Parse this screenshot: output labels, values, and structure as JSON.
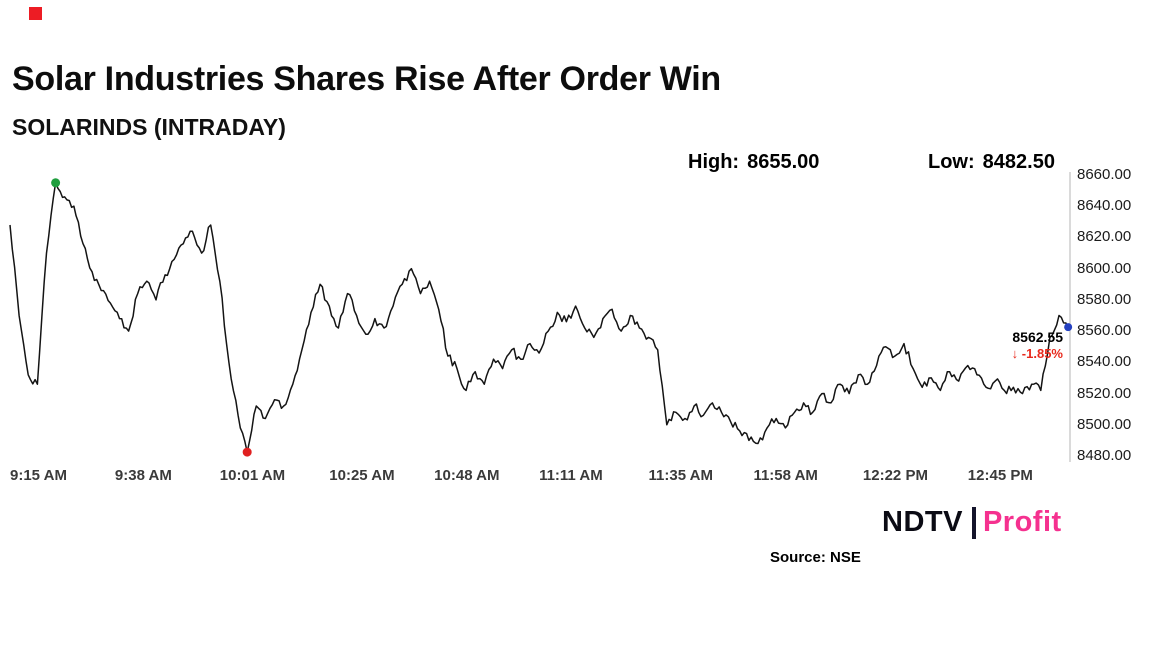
{
  "brand": {
    "red_mark_color": "#ed1c24",
    "logo_ndtv": "NDTV",
    "logo_separator_color": "#14142b",
    "logo_profit": "Profit",
    "profit_color": "#f5318f"
  },
  "header": {
    "title": "Solar Industries Shares Rise After Order Win",
    "symbol_line": "SOLARINDS (INTRADAY)"
  },
  "stats": {
    "high_label": "High:",
    "high_value": "8655.00",
    "low_label": "Low:",
    "low_value": "8482.50"
  },
  "annotation": {
    "last_price": "8562.55",
    "arrow": "↓",
    "change": "-1.85%",
    "change_color": "#e8291c"
  },
  "source": {
    "text": "Source: NSE"
  },
  "chart_data": {
    "type": "line",
    "title": "Solar Industries Shares Rise After Order Win",
    "series_name": "SOLARINDS",
    "high": 8655.0,
    "low": 8482.5,
    "last_value": 8562.55,
    "change_pct": -1.85,
    "ylim": [
      8480,
      8660
    ],
    "y_tick_step": 20,
    "start_time": "9:15 AM",
    "interval_minutes": 2,
    "line_color": "#141414",
    "axis_color": "#b5b5b5",
    "marker_colors": {
      "high": "#1f9e3e",
      "low": "#e02020",
      "last": "#2440c0"
    },
    "x_ticks": [
      {
        "label": "9:15 AM",
        "minutes": 0
      },
      {
        "label": "9:38 AM",
        "minutes": 23
      },
      {
        "label": "10:01 AM",
        "minutes": 46
      },
      {
        "label": "10:25 AM",
        "minutes": 70
      },
      {
        "label": "10:48 AM",
        "minutes": 93
      },
      {
        "label": "11:11 AM",
        "minutes": 116
      },
      {
        "label": "11:35 AM",
        "minutes": 140
      },
      {
        "label": "11:58 AM",
        "minutes": 163
      },
      {
        "label": "12:22 PM",
        "minutes": 187
      },
      {
        "label": "12:45 PM",
        "minutes": 210
      }
    ],
    "values": [
      8628,
      8570,
      8532,
      8526,
      8610,
      8655,
      8646,
      8640,
      8616,
      8598,
      8586,
      8578,
      8568,
      8560,
      8584,
      8592,
      8580,
      8596,
      8606,
      8616,
      8624,
      8610,
      8628,
      8592,
      8540,
      8506,
      8482.5,
      8512,
      8504,
      8516,
      8512,
      8526,
      8548,
      8572,
      8590,
      8576,
      8562,
      8584,
      8570,
      8558,
      8568,
      8562,
      8576,
      8590,
      8600,
      8584,
      8592,
      8574,
      8544,
      8536,
      8522,
      8534,
      8526,
      8542,
      8536,
      8548,
      8542,
      8552,
      8546,
      8560,
      8572,
      8566,
      8576,
      8562,
      8556,
      8568,
      8574,
      8560,
      8570,
      8562,
      8556,
      8548,
      8500,
      8508,
      8504,
      8512,
      8506,
      8514,
      8508,
      8502,
      8496,
      8490,
      8488,
      8498,
      8504,
      8498,
      8508,
      8514,
      8508,
      8520,
      8514,
      8526,
      8520,
      8532,
      8526,
      8538,
      8550,
      8544,
      8552,
      8536,
      8524,
      8530,
      8522,
      8534,
      8528,
      8538,
      8532,
      8524,
      8528,
      8522,
      8524,
      8520,
      8526,
      8522,
      8556,
      8570,
      8562.55
    ]
  }
}
